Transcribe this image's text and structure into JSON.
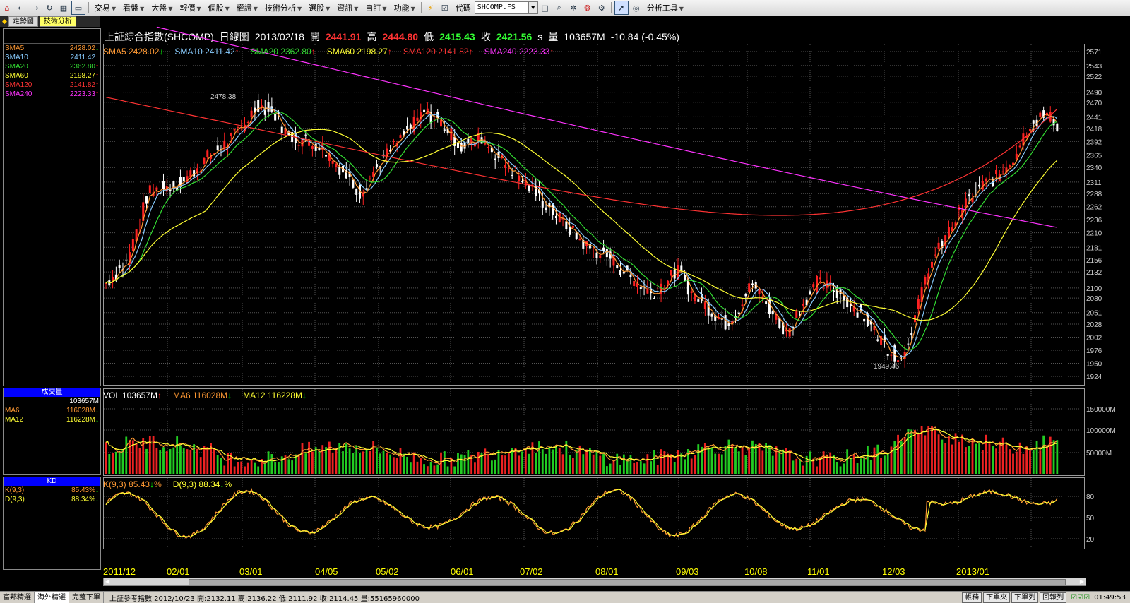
{
  "menubar": {
    "items": [
      {
        "label": "交易",
        "dropdown": true
      },
      {
        "label": "看盤",
        "dropdown": true
      },
      {
        "label": "大盤",
        "dropdown": true
      },
      {
        "label": "報價",
        "dropdown": true
      },
      {
        "label": "個股",
        "dropdown": true
      },
      {
        "label": "權證",
        "dropdown": true
      },
      {
        "label": "技術分析",
        "dropdown": true
      },
      {
        "label": "選股",
        "dropdown": true
      },
      {
        "label": "資訊",
        "dropdown": true
      },
      {
        "label": "自訂",
        "dropdown": true
      },
      {
        "label": "功能",
        "dropdown": true
      }
    ],
    "code_label": "代碼",
    "code_value": "SHCOMP.FS",
    "analysis_tools": "分析工具"
  },
  "tabs": {
    "trend": "走勢圖",
    "tech": "技術分析"
  },
  "price_header": {
    "name": "上証綜合指數(SHCOMP)",
    "period": "日線圖",
    "date": "2013/02/18",
    "open_label": "開",
    "open": "2441.91",
    "high_label": "高",
    "high": "2444.80",
    "low_label": "低",
    "low": "2415.43",
    "close_label": "收",
    "close": "2421.56",
    "s_mark": "s",
    "vol_label": "量",
    "volume": "103657M",
    "change": "-10.84 (-0.45%)"
  },
  "sma_legend": [
    {
      "label": "SMA5",
      "value": "2428.02",
      "dir": "down",
      "color": "#ff9933"
    },
    {
      "label": "SMA10",
      "value": "2411.42",
      "dir": "up",
      "color": "#88ccff"
    },
    {
      "label": "SMA20",
      "value": "2362.80",
      "dir": "up",
      "color": "#33dd33"
    },
    {
      "label": "SMA60",
      "value": "2198.27",
      "dir": "up",
      "color": "#ffff33"
    },
    {
      "label": "SMA120",
      "value": "2141.82",
      "dir": "up",
      "color": "#ff3333"
    },
    {
      "label": "SMA240",
      "value": "2223.33",
      "dir": "up",
      "color": "#ff33ff"
    }
  ],
  "price_axis": [
    "2571",
    "2543",
    "2522",
    "2490",
    "2470",
    "2441",
    "2418",
    "2392",
    "2365",
    "2340",
    "2311",
    "2288",
    "2262",
    "2236",
    "2210",
    "2181",
    "2156",
    "2132",
    "2100",
    "2080",
    "2051",
    "2028",
    "2002",
    "1976",
    "1950",
    "1924"
  ],
  "price_annotations": {
    "high": "2478.38",
    "low": "1949.46"
  },
  "volume_legend": [
    {
      "label": "VOL",
      "value": "103657M",
      "dir": "up",
      "color": "#ffffff"
    },
    {
      "label": "MA6",
      "value": "116028M",
      "dir": "down",
      "color": "#ff9933"
    },
    {
      "label": "MA12",
      "value": "116228M",
      "dir": "down",
      "color": "#ffff33"
    }
  ],
  "volume_axis": [
    "150000M",
    "100000M",
    "50000M"
  ],
  "kd_legend": [
    {
      "label": "K(9,3)",
      "value": "85.43",
      "dir": "down",
      "unit": "%",
      "color": "#ff9933"
    },
    {
      "label": "D(9,3)",
      "value": "88.34",
      "dir": "down",
      "unit": "%",
      "color": "#ffff33"
    }
  ],
  "kd_axis": [
    "80",
    "50",
    "20"
  ],
  "left_panel": {
    "price_top_label": "",
    "kd_head": "KD",
    "vol_head": "成交量",
    "vol_row_value": "103657M"
  },
  "date_axis": [
    "2011/12",
    "02/01",
    "03/01",
    "04/05",
    "05/02",
    "06/01",
    "07/02",
    "08/01",
    "09/03",
    "10/08",
    "11/01",
    "12/03",
    "2013/01"
  ],
  "statusbar": {
    "tabs": [
      "富邦精選",
      "海外精選",
      "完整下單"
    ],
    "active_tab": 1,
    "ticker": "上証參考指數 2012/10/23 開:2132.11 高:2136.22 低:2111.92 收:2114.45 量:55165960000",
    "buttons": [
      "帳務",
      "下單夾",
      "下單列",
      "回報列"
    ],
    "time": "01:49:53"
  },
  "colors": {
    "sma5": "#ff9933",
    "sma10": "#88ccff",
    "sma20": "#33dd33",
    "sma60": "#ffff33",
    "sma120": "#ff3333",
    "sma240": "#ff33ff",
    "up": "#ff2222",
    "down": "#22dd22"
  }
}
